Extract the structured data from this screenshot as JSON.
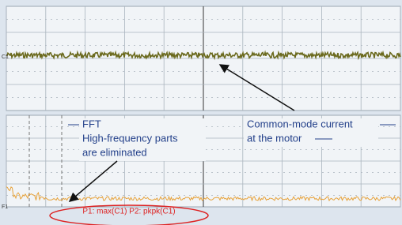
{
  "screen": {
    "channel_labels": {
      "top": "C1",
      "bottom": "F1"
    },
    "annotations": {
      "fft": [
        "FFT",
        "High-frequency parts",
        "are eliminated"
      ],
      "common_mode": [
        "Common-mode current",
        "at the motor"
      ]
    },
    "measurement": "P1: max(C1)  P2: pkpk(C1)"
  }
}
